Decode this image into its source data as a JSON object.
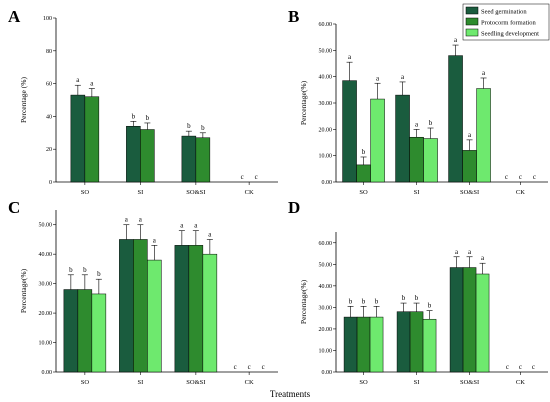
{
  "x_title": "Treatments",
  "colors": {
    "Seed germination": "#1a5c3e",
    "Protocorm formation": "#2e8b2e",
    "Seedling development": "#6ee96e"
  },
  "chart_data": [
    {
      "panel": "A",
      "type": "bar",
      "ylabel": "Percentage (%)",
      "ylim": [
        0,
        100
      ],
      "yticks": [
        "0",
        "20",
        "40",
        "60",
        "80",
        "100"
      ],
      "categories": [
        "SO",
        "SI",
        "SO&SI",
        "CK"
      ],
      "legend": null,
      "series": [
        {
          "name": "Seed germination",
          "values": [
            53,
            34,
            28,
            0
          ],
          "errors": [
            6,
            3,
            3,
            0
          ],
          "letters": [
            "a",
            "b",
            "b",
            "c"
          ]
        },
        {
          "name": "Protocorm formation",
          "values": [
            52,
            32,
            27,
            0
          ],
          "errors": [
            5,
            4,
            3,
            0
          ],
          "letters": [
            "a",
            "b",
            "b",
            "c"
          ]
        }
      ]
    },
    {
      "panel": "B",
      "type": "bar",
      "ylabel": "Percentage(%)",
      "ylim": [
        0,
        60
      ],
      "yticks": [
        "0.00",
        "10.00",
        "20.00",
        "30.00",
        "40.00",
        "50.00",
        "60.00"
      ],
      "categories": [
        "SO",
        "SI",
        "SO&SI",
        "CK"
      ],
      "legend": "top-right",
      "series": [
        {
          "name": "Seed germination",
          "values": [
            38.5,
            33,
            48,
            0
          ],
          "errors": [
            7,
            5,
            4,
            0
          ],
          "letters": [
            "a",
            "a",
            "a",
            "c"
          ]
        },
        {
          "name": "Protocorm formation",
          "values": [
            6.5,
            17,
            12,
            0
          ],
          "errors": [
            3,
            3,
            4,
            0
          ],
          "letters": [
            "b",
            "a",
            "a",
            "c"
          ]
        },
        {
          "name": "Seedling development",
          "values": [
            31.5,
            16.5,
            35.5,
            0
          ],
          "errors": [
            6,
            4,
            4,
            0
          ],
          "letters": [
            "a",
            "b",
            "a",
            "c"
          ]
        }
      ]
    },
    {
      "panel": "C",
      "type": "bar",
      "ylabel": "Percentage(%)",
      "ylim": [
        0,
        55
      ],
      "yticks": [
        "0.00",
        "10.00",
        "20.00",
        "30.00",
        "40.00",
        "50.00"
      ],
      "categories": [
        "SO",
        "SI",
        "SO&SI",
        "CK"
      ],
      "legend": null,
      "series": [
        {
          "name": "Seed germination",
          "values": [
            28,
            45,
            43,
            0
          ],
          "errors": [
            5,
            5,
            5,
            0
          ],
          "letters": [
            "b",
            "a",
            "a",
            "c"
          ]
        },
        {
          "name": "Protocorm formation",
          "values": [
            28,
            45,
            43,
            0
          ],
          "errors": [
            5,
            5,
            5,
            0
          ],
          "letters": [
            "b",
            "a",
            "a",
            "c"
          ]
        },
        {
          "name": "Seedling development",
          "values": [
            26.5,
            38,
            40,
            0
          ],
          "errors": [
            5,
            5,
            5,
            0
          ],
          "letters": [
            "b",
            "a",
            "a",
            "c"
          ]
        }
      ]
    },
    {
      "panel": "D",
      "type": "bar",
      "ylabel": "Percentage(%)",
      "ylim": [
        0,
        65
      ],
      "yticks": [
        "0.00",
        "10.00",
        "20.00",
        "30.00",
        "40.00",
        "50.00",
        "60.00"
      ],
      "categories": [
        "SO",
        "SI",
        "SO&SI",
        "CK"
      ],
      "legend": null,
      "series": [
        {
          "name": "Seed germination",
          "values": [
            25.5,
            28,
            48.5,
            0
          ],
          "errors": [
            5,
            4,
            5,
            0
          ],
          "letters": [
            "b",
            "b",
            "a",
            "c"
          ]
        },
        {
          "name": "Protocorm formation",
          "values": [
            25.5,
            28,
            48.5,
            0
          ],
          "errors": [
            5,
            4,
            5,
            0
          ],
          "letters": [
            "b",
            "b",
            "a",
            "c"
          ]
        },
        {
          "name": "Seedling development",
          "values": [
            25.5,
            24.5,
            45.5,
            0
          ],
          "errors": [
            5,
            4,
            5,
            0
          ],
          "letters": [
            "b",
            "b",
            "a",
            "c"
          ]
        }
      ]
    }
  ]
}
